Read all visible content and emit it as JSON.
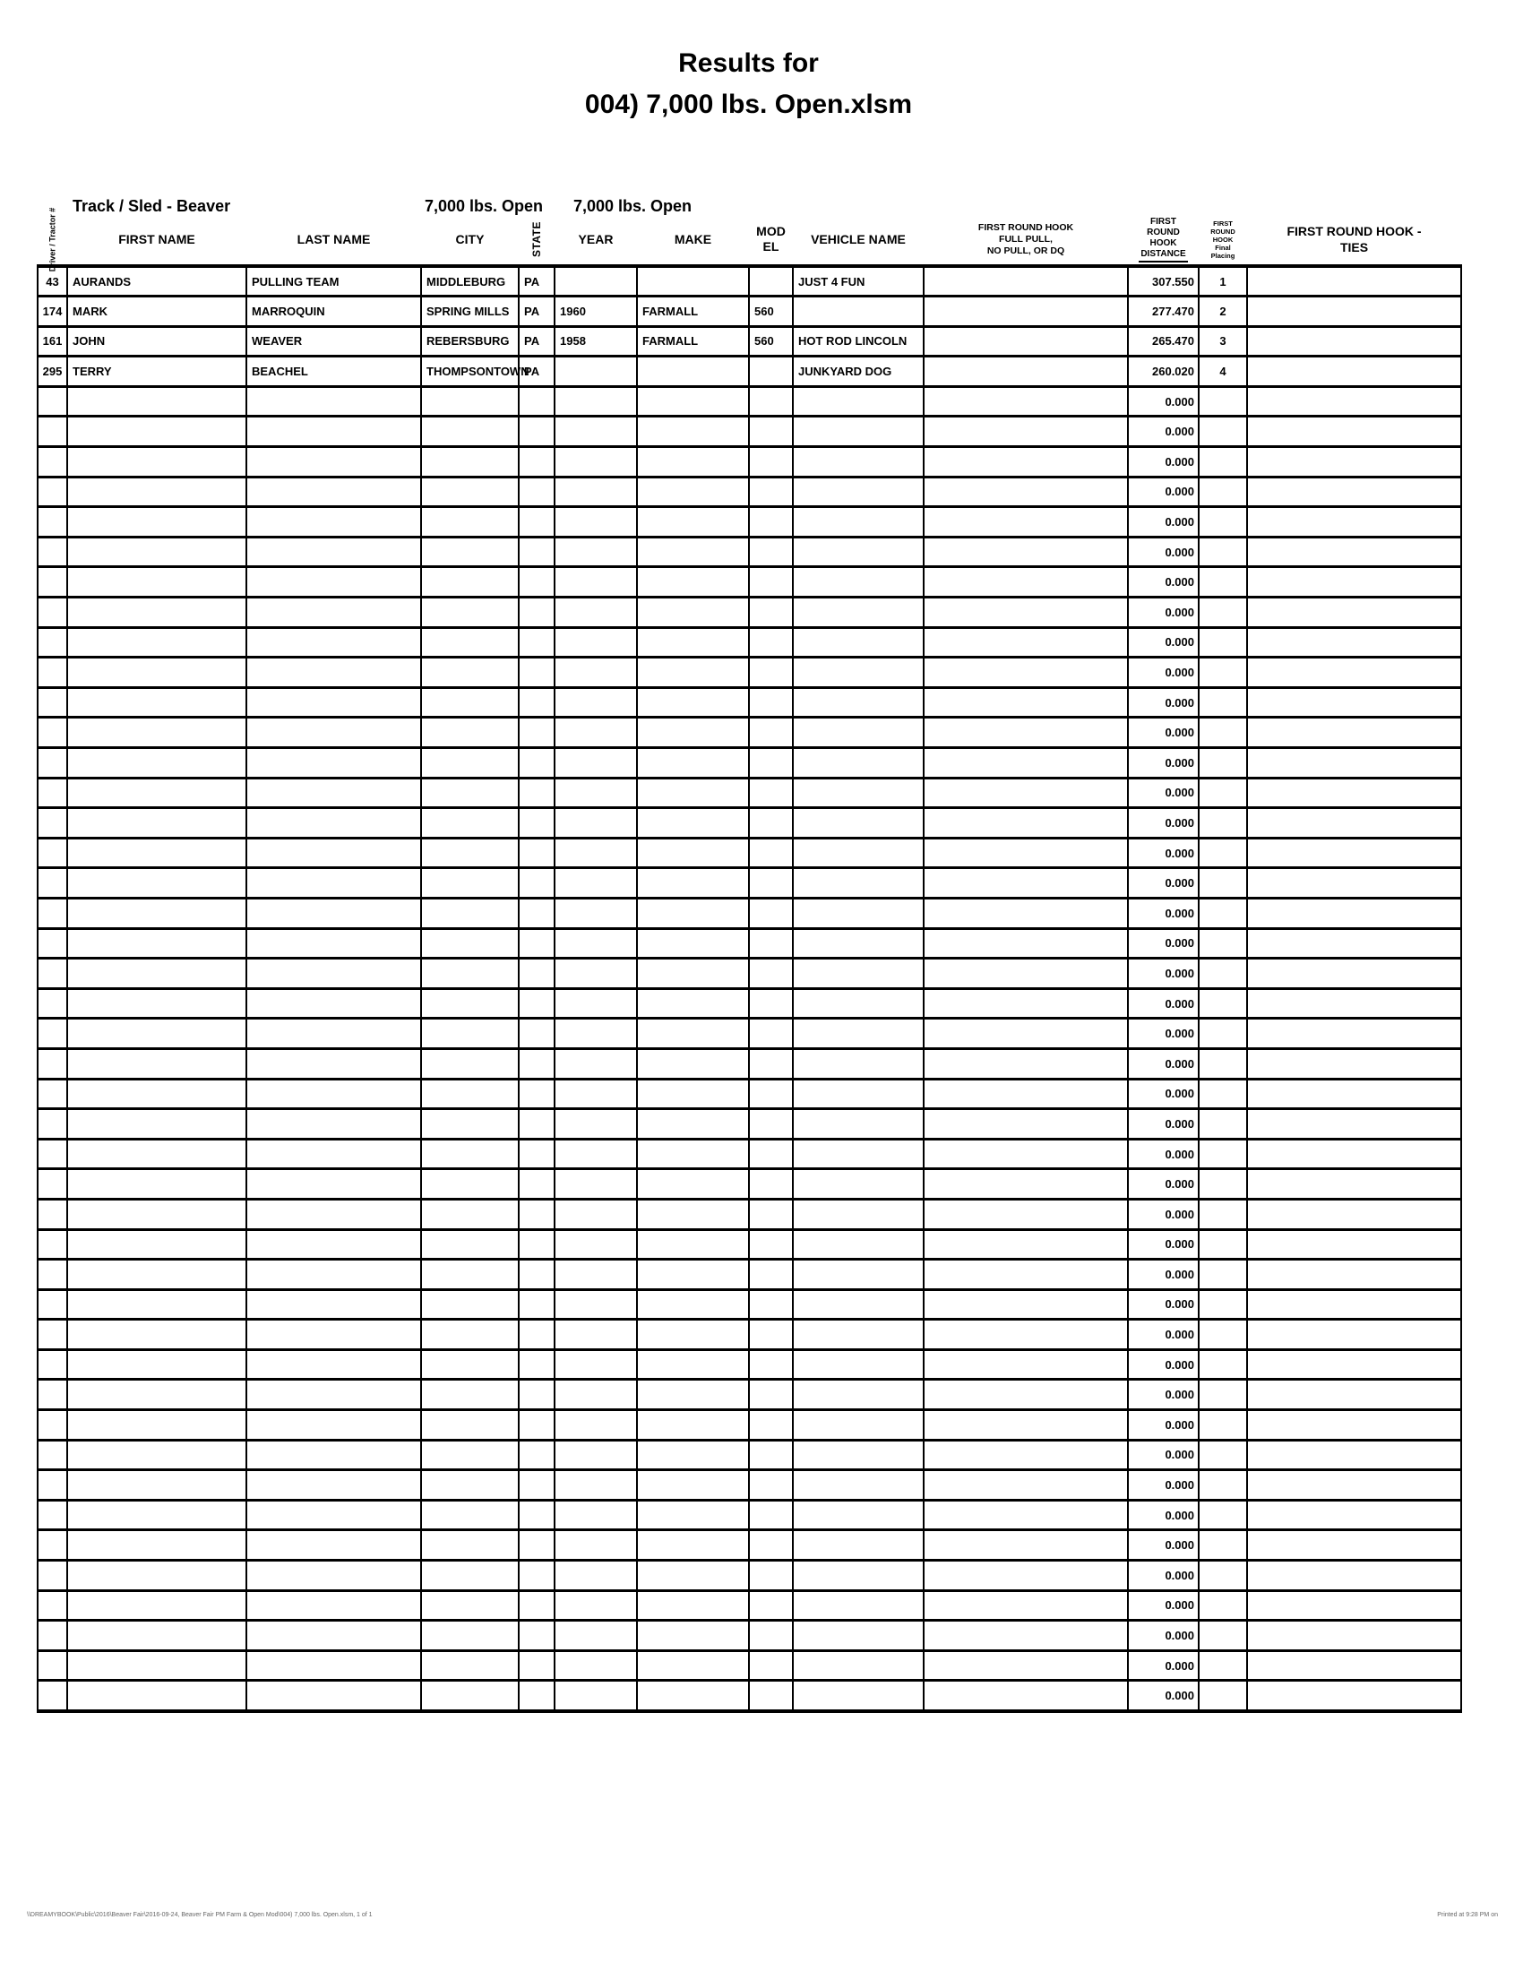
{
  "title": {
    "line1": "Results for",
    "line2": "004) 7,000 lbs. Open.xlsm"
  },
  "meta": {
    "track_sled": "Track / Sled - Beaver",
    "class_left": "7,000 lbs. Open",
    "class_right": "7,000 lbs. Open"
  },
  "table": {
    "header": {
      "driver_tractor": "Driver /\nTractor #",
      "first_name": "FIRST NAME",
      "last_name": "LAST NAME",
      "city": "CITY",
      "state": "STATE",
      "year": "YEAR",
      "make": "MAKE",
      "model": "MOD\nEL",
      "vehicle_name": "VEHICLE NAME",
      "full_pull": "FIRST ROUND HOOK\nFULL PULL,\nNO PULL, OR DQ",
      "distance_top": "FIRST\nROUND\nHOOK",
      "distance_bottom": "DISTANCE",
      "placing": "FIRST\nROUND\nHOOK\nFinal\nPlacing",
      "ties": "FIRST ROUND HOOK -\nTIES"
    },
    "rows": [
      {
        "cells": [
          "43",
          "AURANDS",
          "PULLING TEAM",
          "MIDDLEBURG",
          "PA",
          "",
          "",
          "",
          "JUST 4 FUN",
          "",
          "307.550",
          "1",
          ""
        ]
      },
      {
        "cells": [
          "174",
          "MARK",
          "MARROQUIN",
          "SPRING MILLS",
          "PA",
          "1960",
          "FARMALL",
          "560",
          "",
          "",
          "277.470",
          "2",
          ""
        ]
      },
      {
        "cells": [
          "161",
          "JOHN",
          "WEAVER",
          "REBERSBURG",
          "PA",
          "1958",
          "FARMALL",
          "560",
          "HOT ROD LINCOLN",
          "",
          "265.470",
          "3",
          ""
        ]
      },
      {
        "cells": [
          "295",
          "TERRY",
          "BEACHEL",
          "THOMPSONTOWN",
          "PA",
          "",
          "",
          "",
          "JUNKYARD DOG",
          "",
          "260.020",
          "4",
          ""
        ]
      }
    ],
    "empty_row_count": 44,
    "empty_row": {
      "distance": "0.000"
    }
  },
  "footer": {
    "left": "\\\\DREAMYBOOK\\Public\\2016\\Beaver Fair\\2016-09-24, Beaver Fair PM Farm & Open Mod\\004) 7,000 lbs. Open.xlsm, 1 of 1",
    "right": "Printed at 9:28 PM on"
  }
}
